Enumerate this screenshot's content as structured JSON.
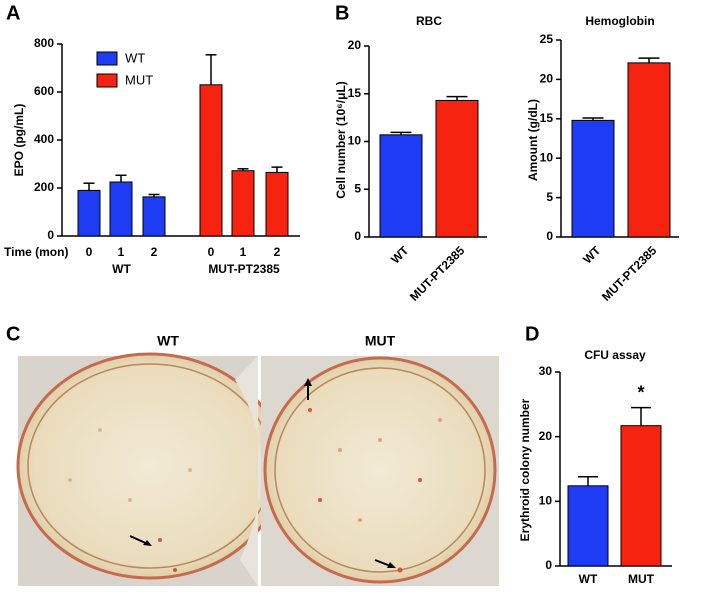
{
  "chart_data": [
    {
      "type": "bar",
      "panel_label": "A",
      "y_label": "EPO (pg/mL)",
      "x_label": "Time (mon)",
      "categories": [
        "0",
        "1",
        "2",
        "0",
        "1",
        "2"
      ],
      "groups": [
        "WT",
        "MUT-PT2385"
      ],
      "series": [
        {
          "name": "WT",
          "color": "#1f3cf5",
          "values": [
            190,
            225,
            163,
            null,
            null,
            null
          ],
          "errors": [
            30,
            28,
            10,
            null,
            null,
            null
          ]
        },
        {
          "name": "MUT",
          "color": "#f5230f",
          "values": [
            null,
            null,
            null,
            630,
            272,
            265
          ],
          "errors": [
            null,
            null,
            null,
            125,
            8,
            22
          ]
        }
      ],
      "ylim": [
        0,
        800
      ],
      "yticks": [
        0,
        200,
        400,
        600,
        800
      ],
      "legend": "upper-left"
    },
    {
      "type": "bar",
      "panel_label": "B",
      "title": "RBC",
      "y_label": "Cell number (10⁶/μL)",
      "categories": [
        "WT",
        "MUT-PT2385"
      ],
      "colors": [
        "#1f3cf5",
        "#f5230f"
      ],
      "values": [
        10.7,
        14.3
      ],
      "errors": [
        0.25,
        0.4
      ],
      "ylim": [
        0,
        20
      ],
      "yticks": [
        0,
        5,
        10,
        15,
        20
      ]
    },
    {
      "type": "bar",
      "title": "Hemoglobin",
      "y_label": "Amount (g/dL)",
      "categories": [
        "WT",
        "MUT-PT2385"
      ],
      "colors": [
        "#1f3cf5",
        "#f5230f"
      ],
      "values": [
        14.8,
        22.1
      ],
      "errors": [
        0.3,
        0.6
      ],
      "ylim": [
        0,
        25
      ],
      "yticks": [
        0,
        5,
        10,
        15,
        20,
        25
      ]
    },
    {
      "type": "bar",
      "panel_label": "D",
      "title": "CFU assay",
      "y_label": "Erythroid colony number",
      "categories": [
        "WT",
        "MUT"
      ],
      "colors": [
        "#1f3cf5",
        "#f5230f"
      ],
      "values": [
        12.4,
        21.7
      ],
      "errors": [
        1.4,
        2.8
      ],
      "annotation": "*",
      "ylim": [
        0,
        30
      ],
      "yticks": [
        0,
        10,
        20,
        30
      ]
    }
  ],
  "photo_panel": {
    "panel_label": "C",
    "titles": [
      "WT",
      "MUT"
    ]
  }
}
